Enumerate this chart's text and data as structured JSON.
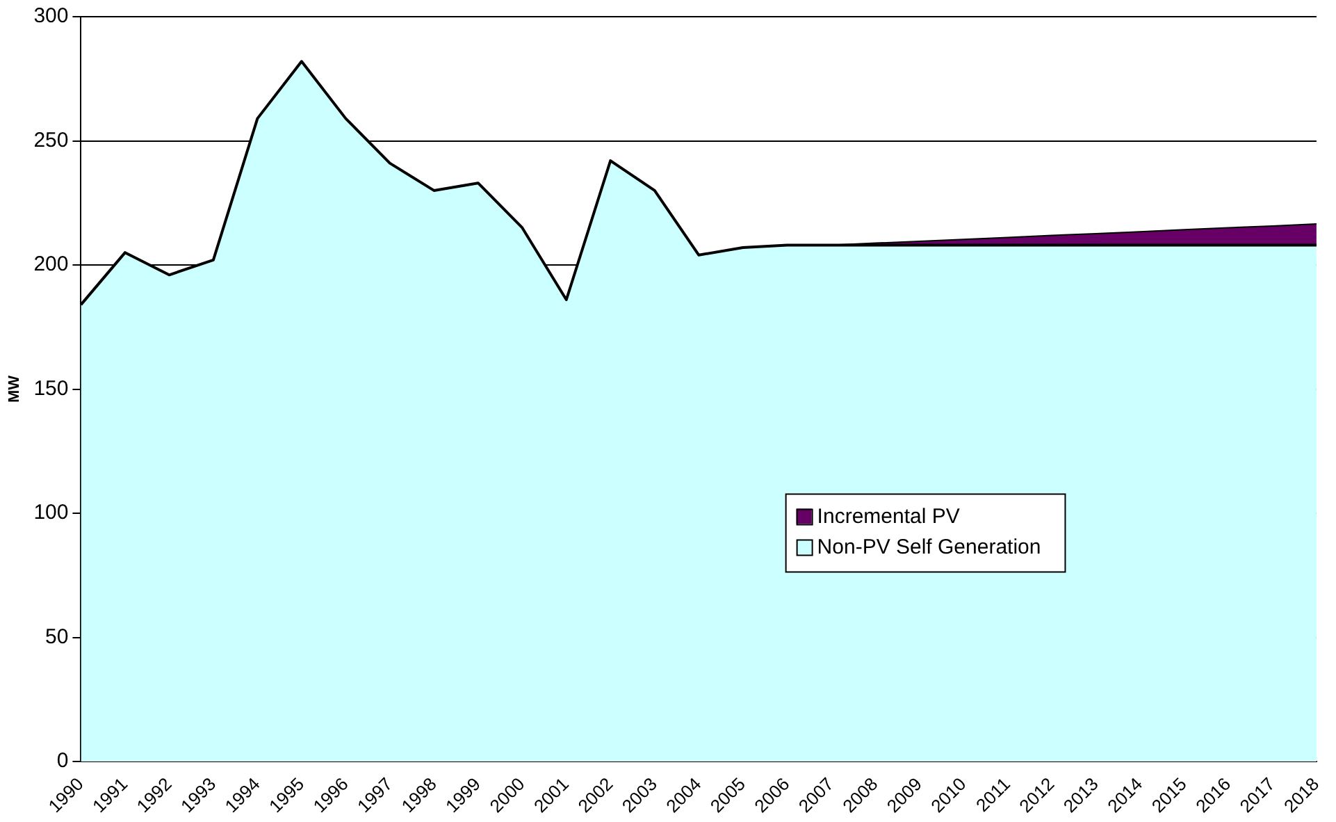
{
  "chart_data": {
    "type": "area",
    "stacked": true,
    "ylabel": "MW",
    "categories": [
      "1990",
      "1991",
      "1992",
      "1993",
      "1994",
      "1995",
      "1996",
      "1997",
      "1998",
      "1999",
      "2000",
      "2001",
      "2002",
      "2003",
      "2004",
      "2005",
      "2006",
      "2007",
      "2008",
      "2009",
      "2010",
      "2011",
      "2012",
      "2013",
      "2014",
      "2015",
      "2016",
      "2017",
      "2018"
    ],
    "series": [
      {
        "name": "Non-PV Self Generation",
        "color": "#ccffff",
        "values": [
          184,
          205,
          196,
          202,
          259,
          282,
          259,
          241,
          230,
          233,
          215,
          186,
          242,
          230,
          204,
          207,
          208,
          208,
          208,
          208,
          208,
          208,
          208,
          208,
          208,
          208,
          208,
          208,
          208
        ]
      },
      {
        "name": "Incremental PV",
        "color": "#660066",
        "values": [
          0,
          0,
          0,
          0,
          0,
          0,
          0,
          0,
          0,
          0,
          0,
          0,
          0,
          0,
          0,
          0,
          0,
          0,
          0.8,
          1.5,
          2.3,
          3.1,
          3.9,
          4.6,
          5.4,
          6.2,
          7,
          7.7,
          8.5
        ]
      }
    ],
    "ylim": [
      0,
      300
    ],
    "yticks": [
      0,
      50,
      100,
      150,
      200,
      250,
      300
    ],
    "grid": "y",
    "legend": "right"
  }
}
